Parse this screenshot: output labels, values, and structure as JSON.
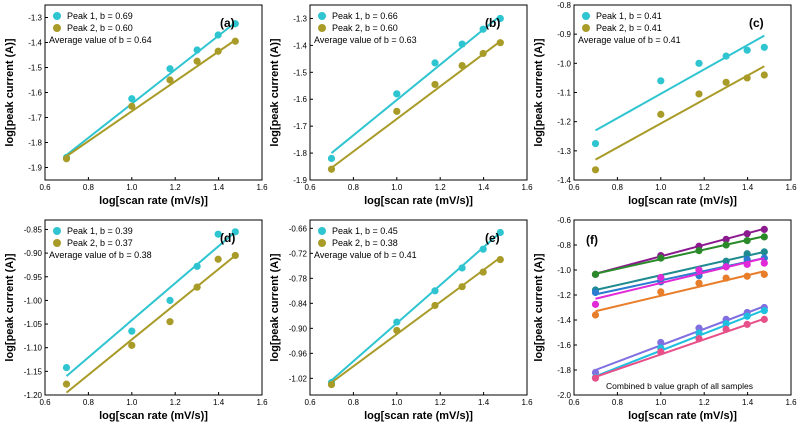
{
  "colors": {
    "peak1": "#2ec4d0",
    "peak2": "#a89b28"
  },
  "chart_data": [
    {
      "type": "scatter",
      "panel": "(a)",
      "xlabel": "log[scan rate (mV/s)]",
      "ylabel": "log[peak current (A)]",
      "xlim": [
        0.6,
        1.6
      ],
      "ylim": [
        -1.95,
        -1.25
      ],
      "xticks": [
        0.6,
        0.8,
        1.0,
        1.2,
        1.4,
        1.6
      ],
      "yticks": [
        -1.9,
        -1.8,
        -1.7,
        -1.6,
        -1.5,
        -1.4,
        -1.3
      ],
      "x": [
        0.699,
        1.0,
        1.176,
        1.301,
        1.398,
        1.477
      ],
      "series": [
        {
          "name": "Peak 1, b = 0.69",
          "values": [
            -1.86,
            -1.625,
            -1.505,
            -1.43,
            -1.37,
            -1.325
          ],
          "fit": [
            -1.85,
            -1.32
          ]
        },
        {
          "name": "Peak 2, b = 0.60",
          "values": [
            -1.865,
            -1.655,
            -1.55,
            -1.475,
            -1.435,
            -1.395
          ],
          "fit": [
            -1.855,
            -1.39
          ]
        }
      ],
      "annotation": "Average value of b = 0.64"
    },
    {
      "type": "scatter",
      "panel": "(b)",
      "xlabel": "log[scan rate (mV/s)]",
      "ylabel": "log[peak current (A)]",
      "xlim": [
        0.6,
        1.6
      ],
      "ylim": [
        -1.9,
        -1.25
      ],
      "xticks": [
        0.6,
        0.8,
        1.0,
        1.2,
        1.4,
        1.6
      ],
      "yticks": [
        -1.9,
        -1.8,
        -1.7,
        -1.6,
        -1.5,
        -1.4,
        -1.3
      ],
      "x": [
        0.699,
        1.0,
        1.176,
        1.301,
        1.398,
        1.477
      ],
      "series": [
        {
          "name": "Peak 1, b = 0.66",
          "values": [
            -1.82,
            -1.58,
            -1.465,
            -1.395,
            -1.34,
            -1.3
          ],
          "fit": [
            -1.8,
            -1.29
          ]
        },
        {
          "name": "Peak 2, b = 0.60",
          "values": [
            -1.86,
            -1.645,
            -1.545,
            -1.475,
            -1.43,
            -1.39
          ],
          "fit": [
            -1.855,
            -1.385
          ]
        }
      ],
      "annotation": "Average value of b = 0.63"
    },
    {
      "type": "scatter",
      "panel": "(c)",
      "xlabel": "log[scan rate (mV/s)]",
      "ylabel": "log[peak current (A)]",
      "xlim": [
        0.6,
        1.6
      ],
      "ylim": [
        -1.4,
        -0.8
      ],
      "xticks": [
        0.6,
        0.8,
        1.0,
        1.2,
        1.4,
        1.6
      ],
      "yticks": [
        -1.4,
        -1.3,
        -1.2,
        -1.1,
        -1.0,
        -0.9,
        -0.8
      ],
      "x": [
        0.699,
        1.0,
        1.176,
        1.301,
        1.398,
        1.477
      ],
      "series": [
        {
          "name": "Peak 1, b = 0.41",
          "values": [
            -1.275,
            -1.06,
            -1.0,
            -0.975,
            -0.955,
            -0.945
          ],
          "fit": [
            -1.23,
            -0.905
          ]
        },
        {
          "name": "Peak 2, b = 0.41",
          "values": [
            -1.365,
            -1.175,
            -1.105,
            -1.065,
            -1.05,
            -1.04
          ],
          "fit": [
            -1.33,
            -1.01
          ]
        }
      ],
      "annotation": "Average value of b = 0.41"
    },
    {
      "type": "scatter",
      "panel": "(d)",
      "xlabel": "log[scan rate (mV/s)]",
      "ylabel": "log[peak current (A)]",
      "xlim": [
        0.6,
        1.6
      ],
      "ylim": [
        -1.2,
        -0.83
      ],
      "xticks": [
        0.6,
        0.8,
        1.0,
        1.2,
        1.4,
        1.6
      ],
      "yticks": [
        -1.2,
        -1.15,
        -1.1,
        -1.05,
        -1.0,
        -0.95,
        -0.9,
        -0.85
      ],
      "yticklabels": [
        "-1.20",
        "-1.15",
        "-1.10",
        "-1.05",
        "-1.00",
        "-0.95",
        "-0.90",
        "-0.85"
      ],
      "x": [
        0.699,
        1.0,
        1.176,
        1.301,
        1.398,
        1.477
      ],
      "series": [
        {
          "name": "Peak 1, b = 0.39",
          "values": [
            -1.142,
            -1.065,
            -1.0,
            -0.928,
            -0.86,
            -0.855
          ],
          "fit": [
            -1.16,
            -0.855
          ]
        },
        {
          "name": "Peak 2, b = 0.37",
          "values": [
            -1.177,
            -1.095,
            -1.045,
            -0.972,
            -0.913,
            -0.905
          ],
          "fit": [
            -1.195,
            -0.905
          ]
        }
      ],
      "annotation": "Average value of b = 0.38"
    },
    {
      "type": "scatter",
      "panel": "(e)",
      "xlabel": "log[scan rate (mV/s)]",
      "ylabel": "log[peak current (A)]",
      "xlim": [
        0.6,
        1.6
      ],
      "ylim": [
        -1.06,
        -0.64
      ],
      "xticks": [
        0.6,
        0.8,
        1.0,
        1.2,
        1.4,
        1.6
      ],
      "yticks": [
        -1.02,
        -0.96,
        -0.9,
        -0.84,
        -0.78,
        -0.72,
        -0.66
      ],
      "yticklabels": [
        "-1.02",
        "-0.96",
        "-0.90",
        "-0.84",
        "-0.78",
        "-0.72",
        "-0.66"
      ],
      "x": [
        0.699,
        1.0,
        1.176,
        1.301,
        1.398,
        1.477
      ],
      "series": [
        {
          "name": "Peak 1, b = 0.45",
          "values": [
            -1.03,
            -0.885,
            -0.81,
            -0.755,
            -0.71,
            -0.67
          ],
          "fit": [
            -1.025,
            -0.67
          ]
        },
        {
          "name": "Peak 2, b = 0.38",
          "values": [
            -1.035,
            -0.905,
            -0.845,
            -0.8,
            -0.765,
            -0.735
          ],
          "fit": [
            -1.03,
            -0.73
          ]
        }
      ],
      "annotation": "Average value of b = 0.41"
    },
    {
      "type": "scatter",
      "panel": "(f)",
      "xlabel": "log[scan rate (mV/s)]",
      "ylabel": "log[peak current (A)]",
      "xlim": [
        0.6,
        1.6
      ],
      "ylim": [
        -2.0,
        -0.6
      ],
      "xticks": [
        0.6,
        0.8,
        1.0,
        1.2,
        1.4,
        1.6
      ],
      "yticks": [
        -2.0,
        -1.8,
        -1.6,
        -1.4,
        -1.2,
        -1.0,
        -0.8,
        -0.6
      ],
      "x": [
        0.699,
        1.0,
        1.176,
        1.301,
        1.398,
        1.477
      ],
      "series": [
        {
          "name": "purple",
          "color": "#8b1a8f",
          "values": [
            -1.035,
            -0.885,
            -0.81,
            -0.755,
            -0.71,
            -0.675
          ],
          "fit": [
            -1.03,
            -0.67
          ]
        },
        {
          "name": "green",
          "color": "#2a8a2a",
          "values": [
            -1.035,
            -0.905,
            -0.845,
            -0.8,
            -0.765,
            -0.735
          ],
          "fit": [
            -1.03,
            -0.73
          ]
        },
        {
          "name": "teal",
          "color": "#1f8a8f",
          "values": [
            -1.16,
            -1.065,
            -1.0,
            -0.93,
            -0.87,
            -0.855
          ],
          "fit": [
            -1.16,
            -0.855
          ]
        },
        {
          "name": "blue",
          "color": "#2b7bd0",
          "values": [
            -1.18,
            -1.095,
            -1.045,
            -0.97,
            -0.915,
            -0.905
          ],
          "fit": [
            -1.195,
            -0.905
          ]
        },
        {
          "name": "magenta",
          "color": "#e02ad8",
          "values": [
            -1.275,
            -1.06,
            -1.0,
            -0.975,
            -0.955,
            -0.945
          ],
          "fit": [
            -1.23,
            -0.905
          ]
        },
        {
          "name": "orange",
          "color": "#e87d2a",
          "values": [
            -1.36,
            -1.175,
            -1.105,
            -1.065,
            -1.05,
            -1.035
          ],
          "fit": [
            -1.33,
            -1.01
          ]
        },
        {
          "name": "violet",
          "color": "#7f6fe0",
          "values": [
            -1.82,
            -1.58,
            -1.465,
            -1.395,
            -1.34,
            -1.3
          ],
          "fit": [
            -1.8,
            -1.29
          ]
        },
        {
          "name": "cyan",
          "color": "#1ec0e0",
          "values": [
            -1.86,
            -1.625,
            -1.505,
            -1.43,
            -1.37,
            -1.325
          ],
          "fit": [
            -1.85,
            -1.32
          ]
        },
        {
          "name": "pink",
          "color": "#e8508a",
          "values": [
            -1.865,
            -1.655,
            -1.55,
            -1.475,
            -1.435,
            -1.395
          ],
          "fit": [
            -1.855,
            -1.39
          ]
        }
      ],
      "annotation": "Combined b value graph of all samples"
    }
  ]
}
